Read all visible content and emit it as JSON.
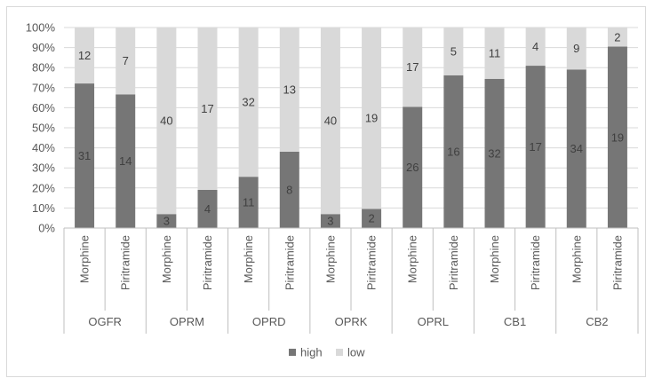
{
  "chart_data": {
    "type": "bar",
    "stacked": true,
    "percent_stacked": true,
    "groups": [
      "OGFR",
      "OPRM",
      "OPRD",
      "OPRK",
      "OPRL",
      "CB1",
      "CB2"
    ],
    "subcategories": [
      "Morphine",
      "Piritramide"
    ],
    "series": [
      {
        "name": "high",
        "color": "#767676",
        "values": [
          31,
          14,
          3,
          4,
          11,
          8,
          3,
          2,
          26,
          16,
          32,
          17,
          34,
          19
        ]
      },
      {
        "name": "low",
        "color": "#d9d9d9",
        "values": [
          12,
          7,
          40,
          17,
          32,
          13,
          40,
          19,
          17,
          5,
          11,
          4,
          9,
          2
        ]
      }
    ],
    "yticks": [
      "0%",
      "10%",
      "20%",
      "30%",
      "40%",
      "50%",
      "60%",
      "70%",
      "80%",
      "90%",
      "100%"
    ],
    "ylim": [
      0,
      100
    ],
    "grid": true,
    "legend_position": "bottom"
  }
}
